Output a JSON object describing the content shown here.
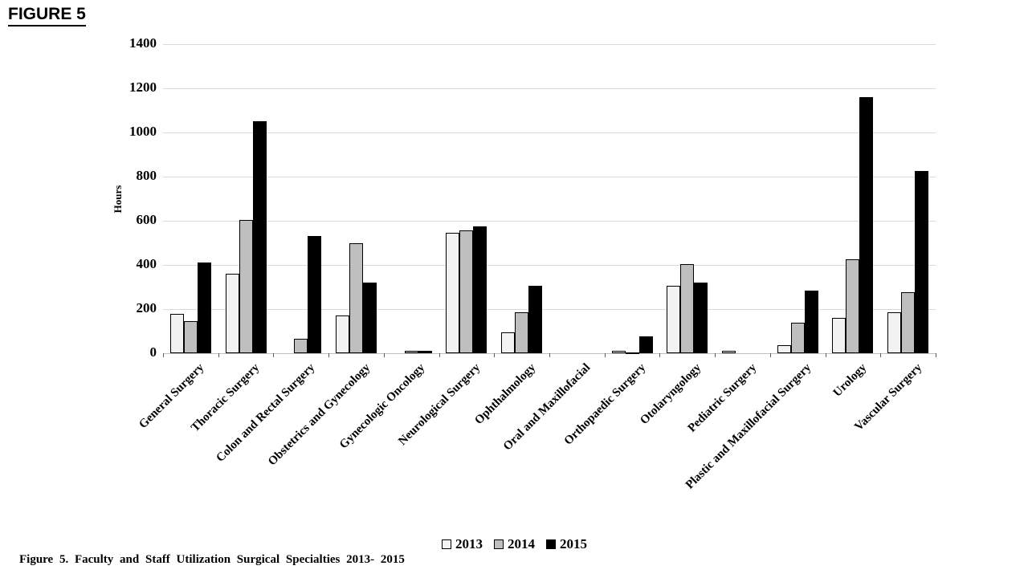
{
  "page": {
    "title": "FIGURE 5",
    "caption": "Figure 5. Faculty and Staff Utilization Surgical Specialties 2013- 2015"
  },
  "chart_data": {
    "type": "bar",
    "title": "FIGURE 5",
    "xlabel": "",
    "ylabel": "Hours",
    "ylim": [
      0,
      1400
    ],
    "ytick_interval": 200,
    "grid": true,
    "legend_position": "bottom",
    "categories": [
      "General Surgery",
      "Thoracic Surgery",
      "Colon and Rectal Surgery",
      "Obstetrics and Gynecology",
      "Gynecologic Oncology",
      "Neurological Surgery",
      "Ophthalmology",
      "Oral and Maxillofacial",
      "Orthopaedic Surgery",
      "Otolaryngology",
      "Pediatric Surgery",
      "Plastic and Maxillofacial Surgery",
      "Urology",
      "Vascular Surgery"
    ],
    "series": [
      {
        "name": "2013",
        "fill": "#f2f2f2",
        "border": "#000000",
        "values": [
          180,
          360,
          0,
          170,
          0,
          545,
          95,
          0,
          10,
          305,
          12,
          35,
          160,
          185
        ]
      },
      {
        "name": "2014",
        "fill": "#bfbfbf",
        "border": "#000000",
        "values": [
          145,
          605,
          65,
          500,
          10,
          555,
          185,
          0,
          5,
          405,
          0,
          140,
          425,
          275
        ]
      },
      {
        "name": "2015",
        "fill": "#000000",
        "border": "#000000",
        "values": [
          410,
          1050,
          530,
          320,
          12,
          575,
          305,
          0,
          75,
          320,
          0,
          285,
          1160,
          825
        ]
      }
    ]
  },
  "colors": {
    "gridline": "#d9d9d9",
    "axis_line": "#bfbfbf",
    "tick": "#595959",
    "text": "#000000",
    "background": "#ffffff"
  }
}
